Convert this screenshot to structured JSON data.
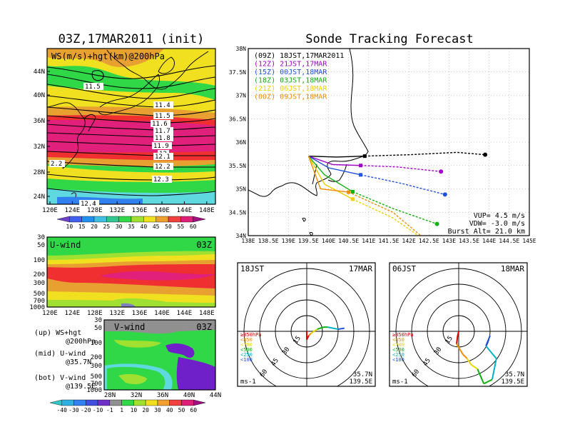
{
  "left_top": {
    "title": "03Z,17MAR2011 (init)",
    "label": "WS(m/s)+hgt(km)@200hPa",
    "lat_ticks": [
      "44N",
      "40N",
      "36N",
      "32N",
      "28N",
      "24N"
    ],
    "lon_ticks": [
      "120E",
      "124E",
      "128E",
      "132E",
      "136E",
      "140E",
      "144E",
      "148E"
    ],
    "contour_labels": [
      "11.5",
      "11.4",
      "11.5",
      "11.6",
      "11.7",
      "11.8",
      "11.9",
      "12",
      "12.1",
      "12.2",
      "12.3",
      "12.4",
      "2.2"
    ],
    "colorbar": [
      "10",
      "15",
      "20",
      "25",
      "30",
      "35",
      "40",
      "45",
      "50",
      "55",
      "60"
    ]
  },
  "left_mid": {
    "label": "U-wind",
    "time": "03Z",
    "p_ticks": [
      "30",
      "50",
      "100",
      "200",
      "300",
      "500",
      "700",
      "1000"
    ],
    "lon_ticks": [
      "120E",
      "124E",
      "128E",
      "132E",
      "136E",
      "140E",
      "144E",
      "148E"
    ]
  },
  "left_bot": {
    "label": "V-wind",
    "time": "03Z",
    "p_ticks": [
      "30",
      "50",
      "100",
      "200",
      "300",
      "500",
      "700",
      "1000"
    ],
    "lat_ticks": [
      "28N",
      "32N",
      "36N",
      "40N",
      "44N"
    ],
    "colorbar": [
      "-40",
      "-30",
      "-20",
      "-10",
      "-1",
      "1",
      "10",
      "20",
      "30",
      "40",
      "50",
      "60"
    ]
  },
  "legend": {
    "l1": "(up) WS+hgt",
    "l2": "@200hPa",
    "l3": "(mid) U-wind",
    "l4": "@35.7N",
    "l5": "(bot) V-wind",
    "l6": "@139.5E"
  },
  "track": {
    "title": "Sonde Tracking Forecast",
    "lat_ticks": [
      "38N",
      "37.5N",
      "37N",
      "36.5N",
      "36N",
      "35.5N",
      "35N",
      "34.5N",
      "34N"
    ],
    "lon_ticks": [
      "138E",
      "138.5E",
      "139E",
      "139.5E",
      "140E",
      "140.5E",
      "141E",
      "141.5E",
      "142E",
      "142.5E",
      "143E",
      "143.5E",
      "144E",
      "144.5E",
      "145E"
    ],
    "runs": [
      {
        "label": "(09Z) 18JST,17MAR2011",
        "color": "#000000"
      },
      {
        "label": "(12Z) 21JST,17MAR",
        "color": "#a000c8"
      },
      {
        "label": "(15Z) 00JST,18MAR",
        "color": "#2050e0"
      },
      {
        "label": "(18Z) 03JST,18MAR",
        "color": "#10b010"
      },
      {
        "label": "(21Z) 06JST,18MAR",
        "color": "#f0d000"
      },
      {
        "label": "(00Z) 09JST,18MAR",
        "color": "#f08c00"
      }
    ],
    "params": [
      "VUP= 4.5 m/s",
      "VDW= -3.0 m/s",
      "Burst Alt= 21.0 km"
    ]
  },
  "hodo1": {
    "time": "18JST",
    "date": "17MAR",
    "units": "ms-1",
    "lat": "35.7N",
    "lon": "139.5E",
    "rings": [
      "15",
      "30",
      "45",
      "60"
    ],
    "levels": [
      {
        "t": "≥850hPa",
        "c": "#e00000"
      },
      {
        "t": "<850",
        "c": "#f08c00"
      },
      {
        "t": "<700",
        "c": "#e8d800"
      },
      {
        "t": "<500",
        "c": "#10b010"
      },
      {
        "t": "<250",
        "c": "#00b0c8"
      },
      {
        "t": "<100",
        "c": "#2050e0"
      }
    ]
  },
  "hodo2": {
    "time": "06JST",
    "date": "18MAR",
    "units": "ms-1",
    "lat": "35.7N",
    "lon": "139.5E",
    "rings": [
      "15",
      "30",
      "45",
      "60"
    ],
    "levels": [
      {
        "t": "≥850hPa",
        "c": "#e00000"
      },
      {
        "t": "<850",
        "c": "#f08c00"
      },
      {
        "t": "<700",
        "c": "#e8d800"
      },
      {
        "t": "<500",
        "c": "#10b010"
      },
      {
        "t": "<250",
        "c": "#00b0c8"
      },
      {
        "t": "<100",
        "c": "#2050e0"
      }
    ]
  },
  "chart_data": [
    {
      "type": "heatmap",
      "title": "03Z,17MAR2011 (init)",
      "subtitle": "WS(m/s)+hgt(km)@200hPa",
      "xlim": [
        120,
        150
      ],
      "ylim": [
        22,
        48
      ],
      "jet_core_lat": [
        28,
        36
      ],
      "colorbar": [
        10,
        15,
        20,
        25,
        30,
        35,
        40,
        45,
        50,
        55,
        60
      ],
      "contours_km": [
        11.4,
        11.5,
        11.6,
        11.7,
        11.8,
        11.9,
        12,
        12.1,
        12.2,
        12.3,
        12.4
      ]
    },
    {
      "type": "heatmap",
      "title": "U-wind",
      "section": "@35.7N",
      "xlim": [
        120,
        150
      ],
      "p_levels": [
        1000,
        700,
        500,
        300,
        200,
        100,
        50,
        30
      ]
    },
    {
      "type": "heatmap",
      "title": "V-wind",
      "section": "@139.5E",
      "xlim": [
        28,
        44
      ],
      "p_levels": [
        1000,
        700,
        500,
        300,
        200,
        100,
        50,
        30
      ],
      "colorbar": [
        -40,
        -30,
        -20,
        -10,
        -1,
        1,
        10,
        20,
        30,
        40,
        50,
        60
      ]
    },
    {
      "type": "line",
      "title": "Sonde Tracking Forecast",
      "xlim": [
        138,
        145
      ],
      "ylim": [
        34,
        38
      ],
      "series": [
        {
          "name": "(09Z) 18JST,17MAR2011",
          "x": [
            139.5,
            140.2,
            140.9,
            142.0,
            143.2,
            143.9
          ],
          "y": [
            35.7,
            35.68,
            35.7,
            35.73,
            35.78,
            35.73
          ]
        },
        {
          "name": "(12Z) 21JST,17MAR",
          "x": [
            139.5,
            140.1,
            140.8,
            141.7,
            142.8
          ],
          "y": [
            35.7,
            35.52,
            35.5,
            35.47,
            35.37
          ]
        },
        {
          "name": "(15Z) 00JST,18MAR",
          "x": [
            139.5,
            140.0,
            140.8,
            141.8,
            142.9
          ],
          "y": [
            35.7,
            35.45,
            35.3,
            35.12,
            34.88
          ]
        },
        {
          "name": "(18Z) 03JST,18MAR",
          "x": [
            139.5,
            139.9,
            140.6,
            141.6,
            142.7
          ],
          "y": [
            35.7,
            35.3,
            34.94,
            34.58,
            34.25
          ]
        },
        {
          "name": "(21Z) 06JST,18MAR",
          "x": [
            139.5,
            139.9,
            140.6,
            141.6,
            142.7
          ],
          "y": [
            35.7,
            35.1,
            34.78,
            34.38,
            33.72
          ]
        },
        {
          "name": "(00Z) 09JST,18MAR",
          "x": [
            139.5,
            139.8,
            140.5,
            141.6,
            142.6
          ],
          "y": [
            35.7,
            35.0,
            34.93,
            34.5,
            33.78
          ]
        }
      ]
    },
    {
      "type": "line",
      "title": "Hodograph 18JST 17MAR",
      "units": "ms-1",
      "series": [
        {
          "name": "wind",
          "u": [
            0,
            0,
            2,
            4,
            10,
            16,
            20,
            30,
            36
          ],
          "v": [
            0,
            -8,
            -4,
            -2,
            2,
            4,
            4,
            2,
            3
          ]
        }
      ]
    },
    {
      "type": "line",
      "title": "Hodograph 06JST 18MAR",
      "units": "ms-1",
      "series": [
        {
          "name": "wind",
          "u": [
            0,
            -1,
            -2,
            4,
            8,
            12,
            18,
            24,
            32,
            36,
            26,
            30
          ],
          "v": [
            0,
            -4,
            -12,
            -22,
            -26,
            -32,
            -36,
            -50,
            -46,
            -26,
            -14,
            -4
          ]
        }
      ]
    }
  ]
}
